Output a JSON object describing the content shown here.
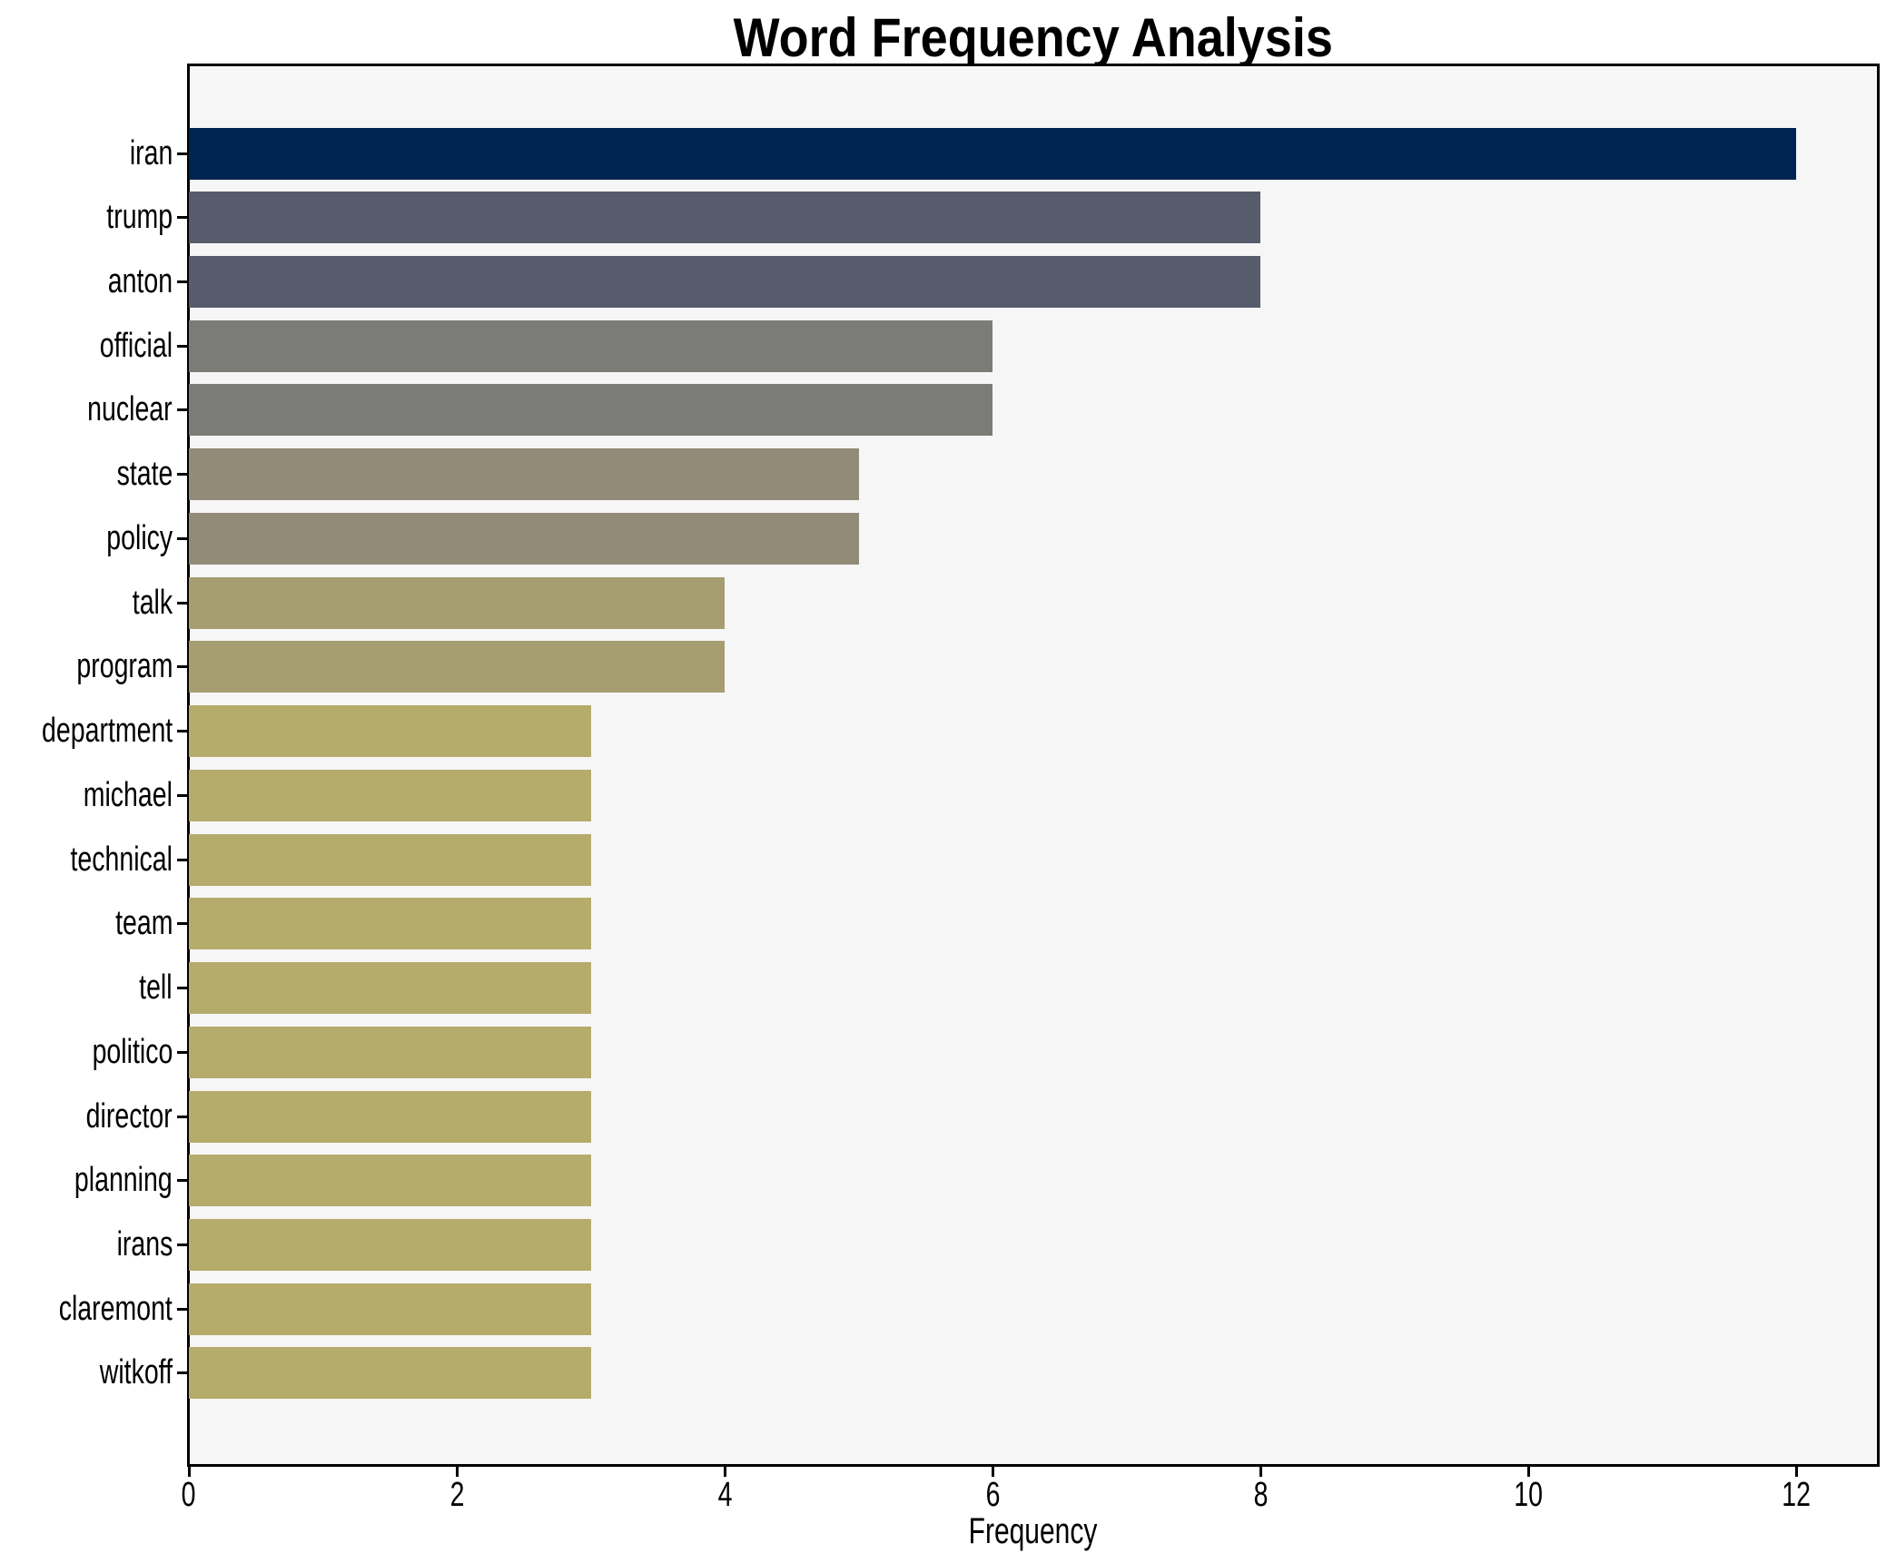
{
  "title": "Word Frequency Analysis",
  "chart_data": {
    "type": "bar",
    "orientation": "horizontal",
    "title": "Word Frequency Analysis",
    "xlabel": "Frequency",
    "ylabel": "",
    "categories": [
      "iran",
      "trump",
      "anton",
      "official",
      "nuclear",
      "state",
      "policy",
      "talk",
      "program",
      "department",
      "michael",
      "technical",
      "team",
      "tell",
      "politico",
      "director",
      "planning",
      "irans",
      "claremont",
      "witkoff"
    ],
    "values": [
      12,
      8,
      8,
      6,
      6,
      5,
      5,
      4,
      4,
      3,
      3,
      3,
      3,
      3,
      3,
      3,
      3,
      3,
      3,
      3
    ],
    "bar_colors": [
      "#002451",
      "#565c6c",
      "#565c6c",
      "#7b7b77",
      "#7b7b77",
      "#918b78",
      "#918b78",
      "#a69d70",
      "#a69d70",
      "#b5ab6b",
      "#b5ab6b",
      "#b5ab6b",
      "#b5ab6b",
      "#b5ab6b",
      "#b5ab6b",
      "#b5ab6b",
      "#b5ab6b",
      "#b5ab6b",
      "#b5ab6b",
      "#b5ab6b"
    ],
    "xlim": [
      0,
      12.6
    ],
    "xticks": [
      0,
      2,
      4,
      6,
      8,
      10,
      12
    ],
    "grid": false,
    "legend": null,
    "plot_bg": "#f6f6f7",
    "fig_bg": "#ffffff",
    "spine_color": "#000000",
    "text_color": "#000000"
  }
}
